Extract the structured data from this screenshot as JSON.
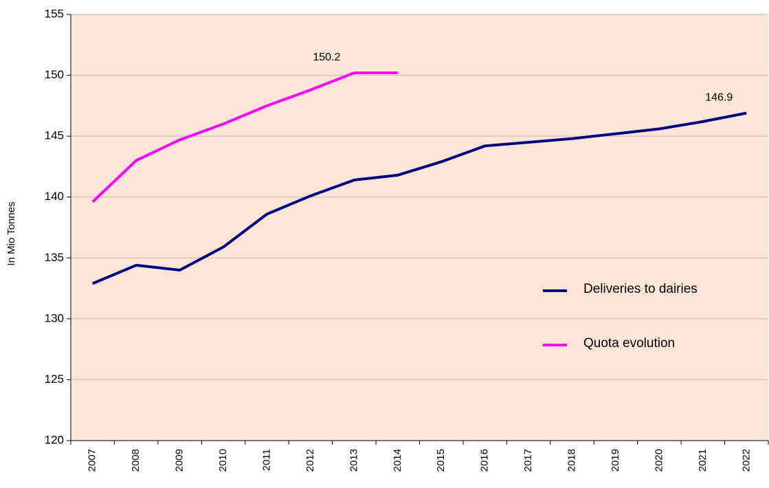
{
  "chart_data": {
    "type": "line",
    "y_label": "In Mio Tonnes",
    "categories": [
      "2007",
      "2008",
      "2009",
      "2010",
      "2011",
      "2012",
      "2013",
      "2014",
      "2015",
      "2016",
      "2017",
      "2018",
      "2019",
      "2020",
      "2021",
      "2022"
    ],
    "series": [
      {
        "name": "Deliveries to dairies",
        "color": "#000080",
        "values": [
          132.9,
          134.4,
          134.0,
          135.9,
          138.6,
          140.1,
          141.4,
          141.8,
          142.9,
          144.2,
          144.5,
          144.8,
          145.2,
          145.6,
          146.2,
          146.9
        ],
        "value_labels": [
          null,
          null,
          null,
          null,
          null,
          null,
          null,
          null,
          null,
          null,
          null,
          null,
          null,
          null,
          null,
          "146.9"
        ]
      },
      {
        "name": "Quota evolution",
        "color": "#ff00ff",
        "values": [
          139.6,
          143.0,
          144.7,
          146.0,
          147.5,
          148.8,
          150.2,
          150.2,
          null,
          null,
          null,
          null,
          null,
          null,
          null,
          null
        ],
        "value_labels": [
          null,
          null,
          null,
          null,
          null,
          null,
          "150.2",
          null,
          null,
          null,
          null,
          null,
          null,
          null,
          null,
          null
        ]
      }
    ],
    "ylim": [
      120,
      155
    ],
    "yticks": [
      120,
      125,
      130,
      135,
      140,
      145,
      150,
      155
    ],
    "grid": true,
    "legend": "right",
    "background": "#fbe5d6"
  }
}
